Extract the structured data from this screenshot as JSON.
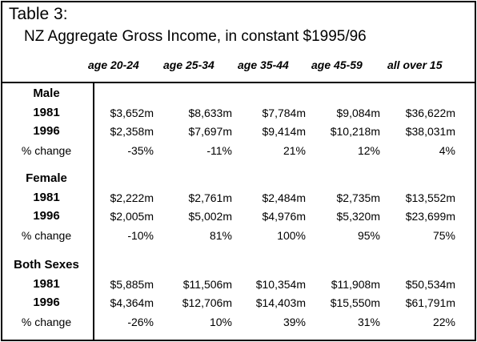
{
  "title": "Table 3:",
  "subtitle": "NZ Aggregate Gross Income, in constant $1995/96",
  "columns": [
    "age 20-24",
    "age 25-34",
    "age 35-44",
    "age 45-59",
    "all over 15"
  ],
  "sections": [
    {
      "name": "Male",
      "rows": [
        {
          "label": "1981",
          "values": [
            "$3,652m",
            "$8,633m",
            "$7,784m",
            "$9,084m",
            "$36,622m"
          ]
        },
        {
          "label": "1996",
          "values": [
            "$2,358m",
            "$7,697m",
            "$9,414m",
            "$10,218m",
            "$38,031m"
          ]
        },
        {
          "label": "% change",
          "values": [
            "-35%",
            "-11%",
            "21%",
            "12%",
            "4%"
          ]
        }
      ]
    },
    {
      "name": "Female",
      "rows": [
        {
          "label": "1981",
          "values": [
            "$2,222m",
            "$2,761m",
            "$2,484m",
            "$2,735m",
            "$13,552m"
          ]
        },
        {
          "label": "1996",
          "values": [
            "$2,005m",
            "$5,002m",
            "$4,976m",
            "$5,320m",
            "$23,699m"
          ]
        },
        {
          "label": "% change",
          "values": [
            "-10%",
            "81%",
            "100%",
            "95%",
            "75%"
          ]
        }
      ]
    },
    {
      "name": "Both Sexes",
      "rows": [
        {
          "label": "1981",
          "values": [
            "$5,885m",
            "$11,506m",
            "$10,354m",
            "$11,908m",
            "$50,534m"
          ]
        },
        {
          "label": "1996",
          "values": [
            "$4,364m",
            "$12,706m",
            "$14,403m",
            "$15,550m",
            "$61,791m"
          ]
        },
        {
          "label": "% change",
          "values": [
            "-26%",
            "10%",
            "39%",
            "31%",
            "22%"
          ]
        }
      ]
    }
  ]
}
